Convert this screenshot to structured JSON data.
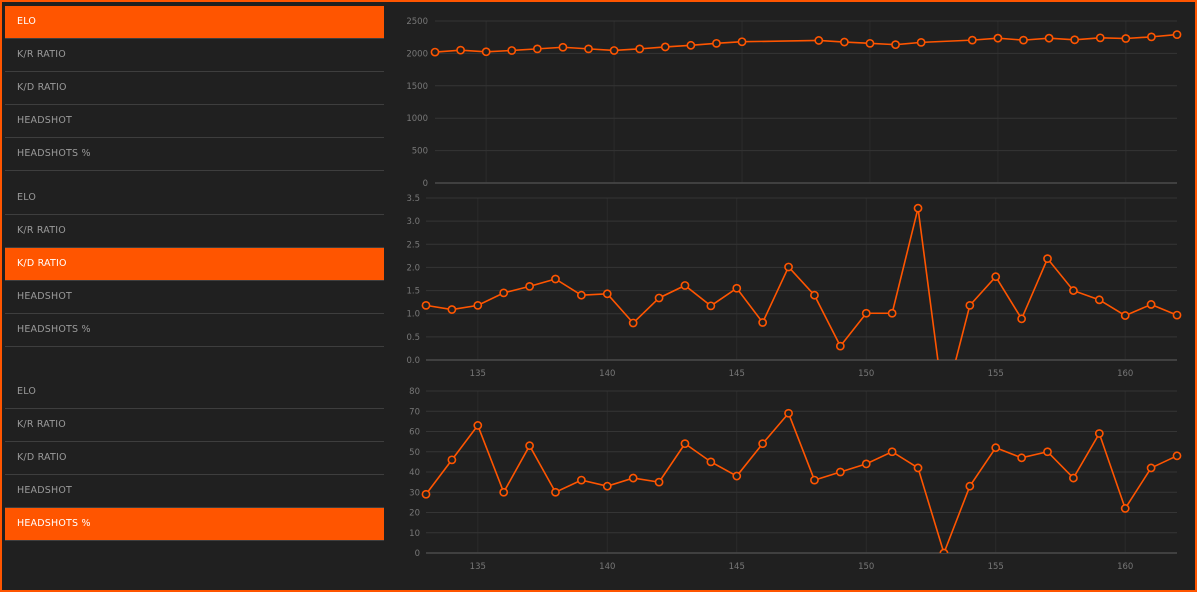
{
  "colors": {
    "accent": "#ff5500",
    "background": "#202020",
    "grid": "#333333",
    "text": "#9a9a9a"
  },
  "menus": [
    {
      "items": [
        {
          "label": "ELO",
          "active": true
        },
        {
          "label": "K/R RATIO",
          "active": false
        },
        {
          "label": "K/D RATIO",
          "active": false
        },
        {
          "label": "HEADSHOT",
          "active": false
        },
        {
          "label": "HEADSHOTS %",
          "active": false
        }
      ]
    },
    {
      "items": [
        {
          "label": "ELO",
          "active": false
        },
        {
          "label": "K/R RATIO",
          "active": false
        },
        {
          "label": "K/D RATIO",
          "active": true
        },
        {
          "label": "HEADSHOT",
          "active": false
        },
        {
          "label": "HEADSHOTS %",
          "active": false
        }
      ]
    },
    {
      "items": [
        {
          "label": "ELO",
          "active": false
        },
        {
          "label": "K/R RATIO",
          "active": false
        },
        {
          "label": "K/D RATIO",
          "active": false
        },
        {
          "label": "HEADSHOT",
          "active": false
        },
        {
          "label": "HEADSHOTS %",
          "active": true
        }
      ]
    }
  ],
  "chart_data": [
    {
      "type": "line",
      "title": "",
      "xlim": [
        133,
        162
      ],
      "ylim": [
        0,
        2500
      ],
      "yticks": [
        "0",
        "500",
        "1000",
        "1500",
        "2000",
        "2500"
      ],
      "xticks": [],
      "grid": true,
      "x": [
        133,
        134,
        135,
        136,
        137,
        138,
        139,
        140,
        141,
        142,
        143,
        144,
        145,
        148,
        149,
        150,
        151,
        152,
        154,
        155,
        156,
        157,
        158,
        159,
        160,
        161,
        162
      ],
      "y": [
        2020,
        2050,
        2025,
        2045,
        2070,
        2095,
        2070,
        2045,
        2070,
        2100,
        2125,
        2155,
        2180,
        2200,
        2175,
        2155,
        2135,
        2170,
        2205,
        2235,
        2205,
        2235,
        2210,
        2240,
        2230,
        2255,
        2290
      ]
    },
    {
      "type": "line",
      "title": "",
      "xlim": [
        133,
        162
      ],
      "ylim": [
        0,
        3.5
      ],
      "yticks": [
        "0.0",
        "0.5",
        "1.0",
        "1.5",
        "2.0",
        "2.5",
        "3.0",
        "3.5"
      ],
      "xticks": [
        "135",
        "140",
        "145",
        "150",
        "155",
        "160"
      ],
      "grid": true,
      "x": [
        133,
        134,
        135,
        136,
        137,
        138,
        139,
        140,
        141,
        142,
        143,
        144,
        145,
        146,
        147,
        148,
        149,
        150,
        151,
        152,
        153,
        154,
        155,
        156,
        157,
        158,
        159,
        160,
        161,
        162
      ],
      "y": [
        1.18,
        1.09,
        1.18,
        1.45,
        1.59,
        1.75,
        1.4,
        1.43,
        0.8,
        1.34,
        1.61,
        1.17,
        1.55,
        0.81,
        2.01,
        1.4,
        0.3,
        1.01,
        1.01,
        3.28,
        -1.0,
        1.18,
        1.8,
        0.89,
        2.19,
        1.5,
        1.3,
        0.96,
        1.2,
        0.97
      ]
    },
    {
      "type": "line",
      "title": "",
      "xlim": [
        133,
        162
      ],
      "ylim": [
        0,
        80
      ],
      "yticks": [
        "0",
        "10",
        "20",
        "30",
        "40",
        "50",
        "60",
        "70",
        "80"
      ],
      "xticks": [
        "135",
        "140",
        "145",
        "150",
        "155",
        "160"
      ],
      "grid": true,
      "x": [
        133,
        134,
        135,
        136,
        137,
        138,
        139,
        140,
        141,
        142,
        143,
        144,
        145,
        146,
        147,
        148,
        149,
        150,
        151,
        152,
        153,
        154,
        155,
        156,
        157,
        158,
        159,
        160,
        161,
        162
      ],
      "y": [
        29,
        46,
        63,
        30,
        53,
        30,
        36,
        33,
        37,
        35,
        54,
        45,
        38,
        54,
        69,
        36,
        40,
        44,
        50,
        42,
        0,
        33,
        52,
        47,
        50,
        37,
        59,
        22,
        42,
        48
      ]
    }
  ]
}
